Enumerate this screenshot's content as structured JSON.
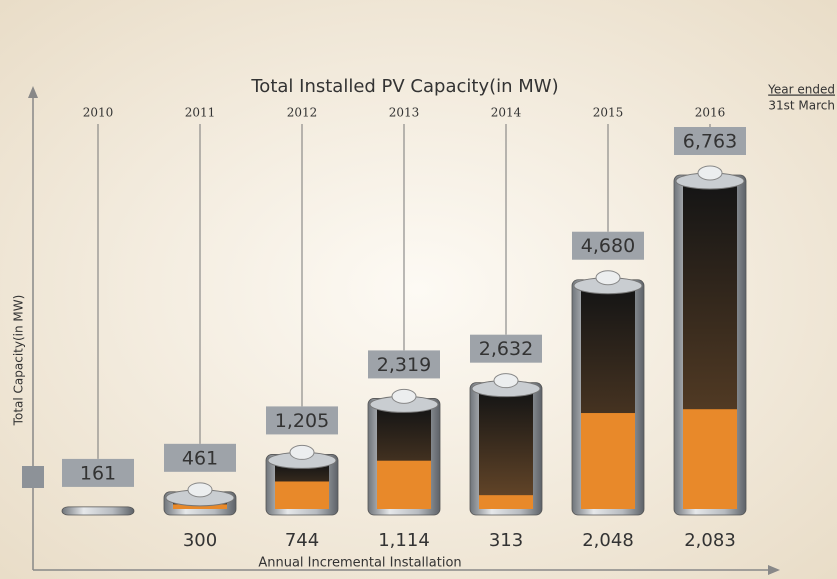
{
  "chart_data": {
    "type": "bar",
    "categories": [
      "2010",
      "2011",
      "2012",
      "2013",
      "2014",
      "2015",
      "2016"
    ],
    "series": [
      {
        "name": "Total Installed PV Capacity(in MW)",
        "color": "#9aa0a6",
        "values": [
          161,
          461,
          1205,
          2319,
          2632,
          4680,
          6763
        ],
        "value_labels": [
          "161",
          "461",
          "1,205",
          "2,319",
          "2,632",
          "4,680",
          "6,763"
        ]
      },
      {
        "name": "Annual Incremental Installation",
        "color": "#e8892a",
        "values": [
          null,
          300,
          744,
          1114,
          313,
          2048,
          2083
        ],
        "value_labels": [
          null,
          "300",
          "744",
          "1,114",
          "313",
          "2,048",
          "2,083"
        ]
      }
    ],
    "y_label": "Total Capacity(in MW)",
    "note": [
      "Year ended",
      "31st March"
    ]
  }
}
